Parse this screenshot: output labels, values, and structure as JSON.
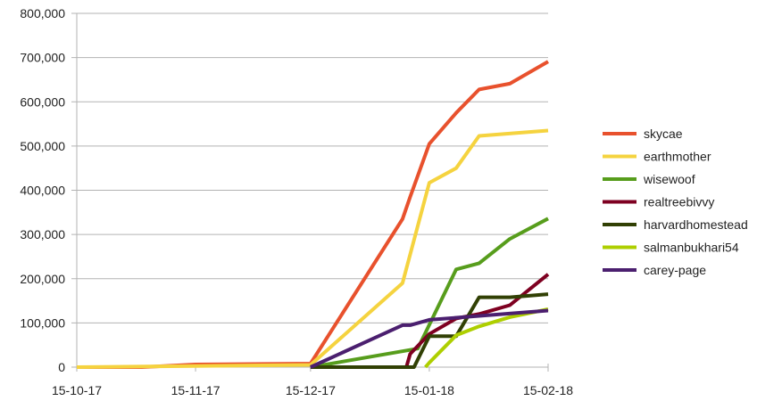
{
  "chart_data": {
    "type": "line",
    "x_tick_labels": [
      "15-10-17",
      "15-11-17",
      "15-12-17",
      "15-01-18",
      "15-02-18"
    ],
    "y_tick_labels": [
      "0",
      "100,000",
      "200,000",
      "300,000",
      "400,000",
      "500,000",
      "600,000",
      "700,000",
      "800,000"
    ],
    "xlim": [
      "2017-10-15",
      "2018-02-15"
    ],
    "ylim": [
      0,
      800000
    ],
    "grid": "horizontal",
    "legend_position": "right",
    "series": [
      {
        "name": "skycae",
        "color": "#e8512d",
        "points": [
          [
            "2017-10-15",
            0
          ],
          [
            "2017-11-01",
            0
          ],
          [
            "2017-11-15",
            6000
          ],
          [
            "2017-12-15",
            8000
          ],
          [
            "2018-01-08",
            335000
          ],
          [
            "2018-01-10",
            385000
          ],
          [
            "2018-01-15",
            505000
          ],
          [
            "2018-01-22",
            575000
          ],
          [
            "2018-01-28",
            628000
          ],
          [
            "2018-02-05",
            641000
          ],
          [
            "2018-02-15",
            691000
          ]
        ]
      },
      {
        "name": "earthmother",
        "color": "#f5d33f",
        "points": [
          [
            "2017-10-15",
            0
          ],
          [
            "2017-12-15",
            5000
          ],
          [
            "2018-01-08",
            190000
          ],
          [
            "2018-01-15",
            417000
          ],
          [
            "2018-01-22",
            450000
          ],
          [
            "2018-01-28",
            523000
          ],
          [
            "2018-02-15",
            535000
          ]
        ]
      },
      {
        "name": "wisewoof",
        "color": "#579d1c",
        "points": [
          [
            "2017-12-15",
            0
          ],
          [
            "2018-01-12",
            42000
          ],
          [
            "2018-01-22",
            221000
          ],
          [
            "2018-01-28",
            235000
          ],
          [
            "2018-02-05",
            290000
          ],
          [
            "2018-02-15",
            336000
          ]
        ]
      },
      {
        "name": "realtreebivvy",
        "color": "#7e0021",
        "points": [
          [
            "2017-12-15",
            0
          ],
          [
            "2018-01-09",
            0
          ],
          [
            "2018-01-10",
            30000
          ],
          [
            "2018-01-15",
            75000
          ],
          [
            "2018-01-22",
            110000
          ],
          [
            "2018-01-28",
            120000
          ],
          [
            "2018-02-05",
            140000
          ],
          [
            "2018-02-15",
            210000
          ]
        ]
      },
      {
        "name": "harvardhomestead",
        "color": "#314004",
        "points": [
          [
            "2017-12-15",
            0
          ],
          [
            "2018-01-11",
            0
          ],
          [
            "2018-01-15",
            70000
          ],
          [
            "2018-01-22",
            70000
          ],
          [
            "2018-01-28",
            158000
          ],
          [
            "2018-02-05",
            158000
          ],
          [
            "2018-02-15",
            165000
          ]
        ]
      },
      {
        "name": "salmanbukhari54",
        "color": "#aecf00",
        "points": [
          [
            "2018-01-14",
            0
          ],
          [
            "2018-01-15",
            10000
          ],
          [
            "2018-01-22",
            72000
          ],
          [
            "2018-01-28",
            92000
          ],
          [
            "2018-02-05",
            113000
          ],
          [
            "2018-02-15",
            131000
          ]
        ]
      },
      {
        "name": "carey-page",
        "color": "#4b1f6f",
        "points": [
          [
            "2017-12-15",
            0
          ],
          [
            "2018-01-08",
            95000
          ],
          [
            "2018-01-10",
            95000
          ],
          [
            "2018-01-15",
            107000
          ],
          [
            "2018-02-15",
            128000
          ]
        ]
      }
    ]
  }
}
